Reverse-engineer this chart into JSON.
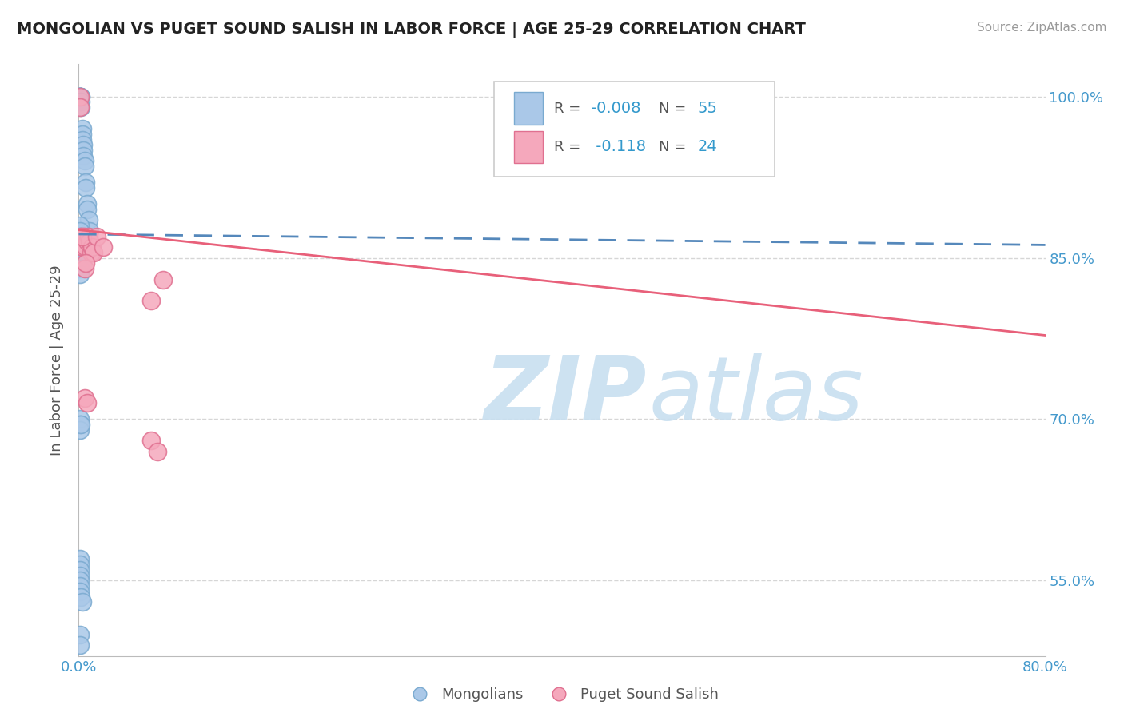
{
  "title": "MONGOLIAN VS PUGET SOUND SALISH IN LABOR FORCE | AGE 25-29 CORRELATION CHART",
  "source": "Source: ZipAtlas.com",
  "ylabel": "In Labor Force | Age 25-29",
  "xlim": [
    0.0,
    0.8
  ],
  "ylim": [
    0.48,
    1.03
  ],
  "xtick_positions": [
    0.0,
    0.1,
    0.2,
    0.3,
    0.4,
    0.5,
    0.6,
    0.7,
    0.8
  ],
  "xticklabels": [
    "0.0%",
    "",
    "",
    "",
    "",
    "",
    "",
    "",
    "80.0%"
  ],
  "ytick_positions": [
    0.55,
    0.7,
    0.85,
    1.0
  ],
  "yticklabels": [
    "55.0%",
    "70.0%",
    "85.0%",
    "100.0%"
  ],
  "mongolian_color": "#aac8e8",
  "salish_color": "#f5a8bc",
  "mongolian_edge": "#7aaad0",
  "salish_edge": "#e07090",
  "trendline_mongolian_color": "#5588bb",
  "trendline_salish_color": "#e8607a",
  "background_color": "#ffffff",
  "grid_color": "#cccccc",
  "R1": -0.008,
  "R2": -0.118,
  "N1": 55,
  "N2": 24,
  "mongolian_x": [
    0.001,
    0.001,
    0.001,
    0.001,
    0.001,
    0.001,
    0.002,
    0.002,
    0.002,
    0.002,
    0.003,
    0.003,
    0.003,
    0.004,
    0.004,
    0.004,
    0.005,
    0.005,
    0.006,
    0.006,
    0.007,
    0.007,
    0.008,
    0.009,
    0.01,
    0.01,
    0.001,
    0.001,
    0.001,
    0.001,
    0.002,
    0.002,
    0.003,
    0.005,
    0.001,
    0.001,
    0.002,
    0.003,
    0.001,
    0.001,
    0.001,
    0.001,
    0.001,
    0.002,
    0.001,
    0.001,
    0.001,
    0.001,
    0.001,
    0.001,
    0.001,
    0.002,
    0.003,
    0.001,
    0.001
  ],
  "mongolian_y": [
    1.0,
    1.0,
    1.0,
    1.0,
    1.0,
    0.995,
    1.0,
    1.0,
    0.995,
    0.99,
    0.97,
    0.965,
    0.96,
    0.955,
    0.95,
    0.945,
    0.94,
    0.935,
    0.92,
    0.915,
    0.9,
    0.895,
    0.885,
    0.875,
    0.86,
    0.855,
    0.88,
    0.875,
    0.87,
    0.865,
    0.86,
    0.855,
    0.86,
    0.855,
    0.85,
    0.845,
    0.85,
    0.845,
    0.84,
    0.835,
    0.7,
    0.695,
    0.69,
    0.695,
    0.57,
    0.565,
    0.56,
    0.555,
    0.55,
    0.545,
    0.54,
    0.535,
    0.53,
    0.5,
    0.49
  ],
  "salish_x": [
    0.001,
    0.001,
    0.002,
    0.003,
    0.004,
    0.005,
    0.006,
    0.007,
    0.008,
    0.009,
    0.01,
    0.011,
    0.012,
    0.003,
    0.015,
    0.02,
    0.005,
    0.006,
    0.06,
    0.07,
    0.005,
    0.007,
    0.06,
    0.065
  ],
  "salish_y": [
    1.0,
    0.99,
    0.87,
    0.86,
    0.86,
    0.87,
    0.86,
    0.865,
    0.87,
    0.865,
    0.855,
    0.86,
    0.855,
    0.87,
    0.87,
    0.86,
    0.84,
    0.845,
    0.81,
    0.83,
    0.72,
    0.715,
    0.68,
    0.67
  ],
  "watermark_zip_color": "#c8dff0",
  "watermark_atlas_color": "#c8dff0"
}
